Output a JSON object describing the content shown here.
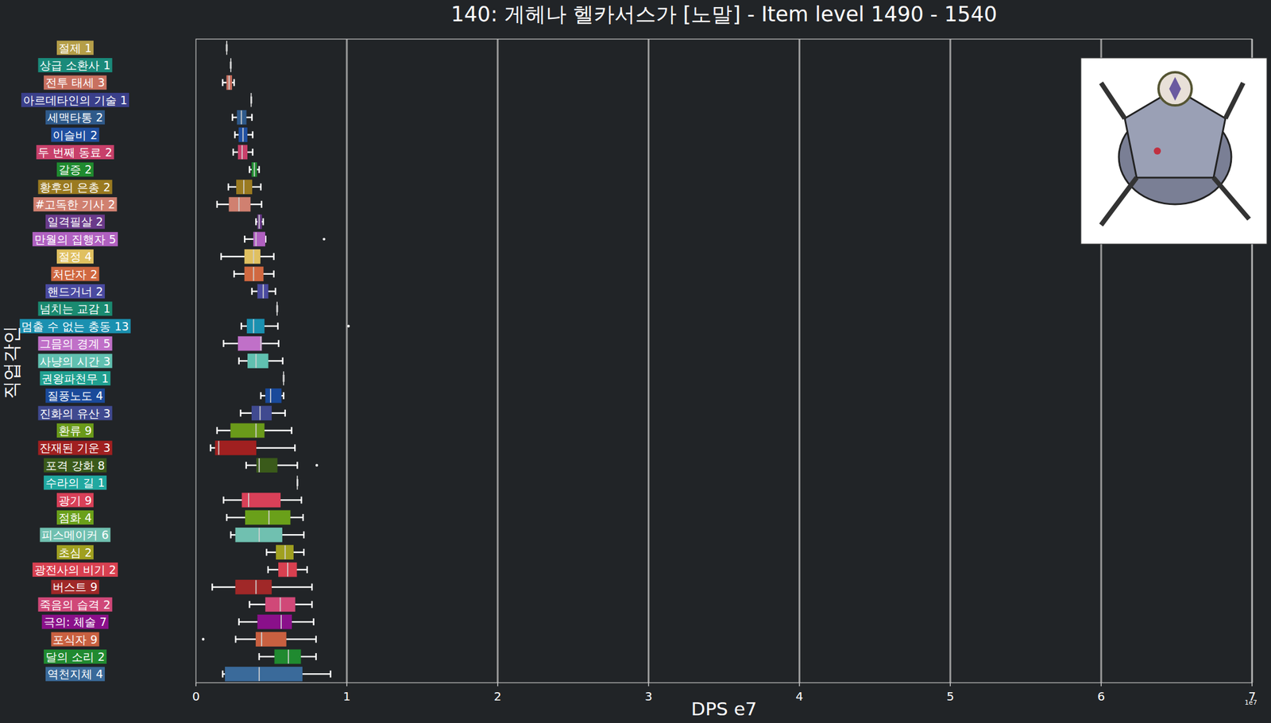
{
  "chart_data": {
    "type": "box",
    "orientation": "horizontal",
    "title": "140: 게헤나 헬카서스가 [노말] - Item level 1490 - 1540",
    "x_label": "DPS e7",
    "y_label": "직업각인",
    "offset_text": "1e7",
    "xlim": [
      0,
      7
    ],
    "xticks": [
      0,
      1,
      2,
      3,
      4,
      5,
      6,
      7
    ],
    "grid": true,
    "categories": [
      "절제 1",
      "상급 소환사 1",
      "전투 태세 3",
      "아르데타인의 기술 1",
      "세맥타통 2",
      "이슬비 2",
      "두 번째 동료 2",
      "갈증 2",
      "황후의 은총 2",
      "#고독한 기사 2",
      "일격필살 2",
      "만월의 집행자 5",
      "절정 4",
      "처단자 2",
      "핸드거너 2",
      "넘치는 교감 1",
      "멈출 수 없는 충동 13",
      "그믐의 경계 5",
      "사냥의 시간 3",
      "권왕파천무 1",
      "질풍노도 4",
      "진화의 유산 3",
      "환류 9",
      "잔재된 기운 3",
      "포격 강화 8",
      "수라의 길 1",
      "광기 9",
      "점화 4",
      "피스메이커 6",
      "초심 2",
      "광전사의 비기 2",
      "버스트 9",
      "죽음의 습격 2",
      "극의: 체술 7",
      "포식자 9",
      "달의 소리 2",
      "역천지체 4"
    ],
    "colors": [
      "#b59e48",
      "#1a8a7a",
      "#c87060",
      "#3a3f8a",
      "#2f5a8a",
      "#1f4fa0",
      "#c8406a",
      "#1f8a2f",
      "#9a7a20",
      "#d08070",
      "#6a3a8a",
      "#b060c0",
      "#e0c060",
      "#d06840",
      "#4a4aa0",
      "#1a8a70",
      "#1a90b0",
      "#c070c8",
      "#60c0b0",
      "#20a090",
      "#1a4a9a",
      "#404a90",
      "#6a9a1a",
      "#a02020",
      "#3a5a1a",
      "#20a8a0",
      "#d84058",
      "#6aa01a",
      "#70c0b0",
      "#a0a020",
      "#d84050",
      "#a02828",
      "#d04878",
      "#8a108a",
      "#c86040",
      "#208a30",
      "#3a6a9a"
    ],
    "boxes": [
      {
        "low": 0.204,
        "q1": 0.204,
        "median": 0.204,
        "q3": 0.204,
        "high": 0.204,
        "outliers": []
      },
      {
        "low": 0.231,
        "q1": 0.231,
        "median": 0.231,
        "q3": 0.231,
        "high": 0.231,
        "outliers": []
      },
      {
        "low": 0.177,
        "q1": 0.204,
        "median": 0.22,
        "q3": 0.237,
        "high": 0.253,
        "outliers": []
      },
      {
        "low": 0.366,
        "q1": 0.366,
        "median": 0.366,
        "q3": 0.366,
        "high": 0.366,
        "outliers": []
      },
      {
        "low": 0.242,
        "q1": 0.274,
        "median": 0.301,
        "q3": 0.333,
        "high": 0.371,
        "outliers": []
      },
      {
        "low": 0.258,
        "q1": 0.285,
        "median": 0.312,
        "q3": 0.339,
        "high": 0.376,
        "outliers": []
      },
      {
        "low": 0.247,
        "q1": 0.28,
        "median": 0.306,
        "q3": 0.339,
        "high": 0.376,
        "outliers": []
      },
      {
        "low": 0.355,
        "q1": 0.371,
        "median": 0.387,
        "q3": 0.403,
        "high": 0.419,
        "outliers": []
      },
      {
        "low": 0.215,
        "q1": 0.269,
        "median": 0.317,
        "q3": 0.371,
        "high": 0.43,
        "outliers": []
      },
      {
        "low": 0.14,
        "q1": 0.22,
        "median": 0.285,
        "q3": 0.36,
        "high": 0.435,
        "outliers": []
      },
      {
        "low": 0.398,
        "q1": 0.409,
        "median": 0.419,
        "q3": 0.435,
        "high": 0.446,
        "outliers": []
      },
      {
        "low": 0.323,
        "q1": 0.382,
        "median": 0.398,
        "q3": 0.457,
        "high": 0.462,
        "outliers": [
          0.849
        ]
      },
      {
        "low": 0.167,
        "q1": 0.323,
        "median": 0.382,
        "q3": 0.425,
        "high": 0.516,
        "outliers": []
      },
      {
        "low": 0.253,
        "q1": 0.323,
        "median": 0.382,
        "q3": 0.446,
        "high": 0.516,
        "outliers": []
      },
      {
        "low": 0.371,
        "q1": 0.409,
        "median": 0.446,
        "q3": 0.478,
        "high": 0.527,
        "outliers": []
      },
      {
        "low": 0.538,
        "q1": 0.538,
        "median": 0.538,
        "q3": 0.538,
        "high": 0.538,
        "outliers": []
      },
      {
        "low": 0.301,
        "q1": 0.339,
        "median": 0.382,
        "q3": 0.452,
        "high": 0.543,
        "outliers": [
          1.011
        ]
      },
      {
        "low": 0.183,
        "q1": 0.28,
        "median": 0.43,
        "q3": 0.435,
        "high": 0.548,
        "outliers": []
      },
      {
        "low": 0.285,
        "q1": 0.344,
        "median": 0.398,
        "q3": 0.478,
        "high": 0.575,
        "outliers": []
      },
      {
        "low": 0.581,
        "q1": 0.581,
        "median": 0.581,
        "q3": 0.581,
        "high": 0.581,
        "outliers": []
      },
      {
        "low": 0.43,
        "q1": 0.462,
        "median": 0.495,
        "q3": 0.565,
        "high": 0.581,
        "outliers": []
      },
      {
        "low": 0.296,
        "q1": 0.371,
        "median": 0.425,
        "q3": 0.5,
        "high": 0.591,
        "outliers": []
      },
      {
        "low": 0.14,
        "q1": 0.231,
        "median": 0.398,
        "q3": 0.452,
        "high": 0.634,
        "outliers": []
      },
      {
        "low": 0.097,
        "q1": 0.129,
        "median": 0.151,
        "q3": 0.398,
        "high": 0.656,
        "outliers": []
      },
      {
        "low": 0.333,
        "q1": 0.403,
        "median": 0.419,
        "q3": 0.538,
        "high": 0.672,
        "outliers": [
          0.801
        ]
      },
      {
        "low": 0.672,
        "q1": 0.672,
        "median": 0.672,
        "q3": 0.672,
        "high": 0.672,
        "outliers": []
      },
      {
        "low": 0.183,
        "q1": 0.306,
        "median": 0.349,
        "q3": 0.559,
        "high": 0.699,
        "outliers": []
      },
      {
        "low": 0.204,
        "q1": 0.328,
        "median": 0.484,
        "q3": 0.624,
        "high": 0.71,
        "outliers": []
      },
      {
        "low": 0.231,
        "q1": 0.263,
        "median": 0.419,
        "q3": 0.57,
        "high": 0.715,
        "outliers": []
      },
      {
        "low": 0.468,
        "q1": 0.532,
        "median": 0.591,
        "q3": 0.645,
        "high": 0.715,
        "outliers": []
      },
      {
        "low": 0.478,
        "q1": 0.548,
        "median": 0.608,
        "q3": 0.667,
        "high": 0.737,
        "outliers": []
      },
      {
        "low": 0.108,
        "q1": 0.263,
        "median": 0.398,
        "q3": 0.5,
        "high": 0.769,
        "outliers": []
      },
      {
        "low": 0.355,
        "q1": 0.462,
        "median": 0.559,
        "q3": 0.656,
        "high": 0.769,
        "outliers": []
      },
      {
        "low": 0.285,
        "q1": 0.409,
        "median": 0.565,
        "q3": 0.634,
        "high": 0.78,
        "outliers": []
      },
      {
        "low": 0.263,
        "q1": 0.398,
        "median": 0.435,
        "q3": 0.597,
        "high": 0.796,
        "outliers": [
          0.048
        ]
      },
      {
        "low": 0.419,
        "q1": 0.522,
        "median": 0.613,
        "q3": 0.694,
        "high": 0.796,
        "outliers": []
      },
      {
        "low": 0.177,
        "q1": 0.194,
        "median": 0.419,
        "q3": 0.704,
        "high": 0.892,
        "outliers": []
      }
    ]
  }
}
